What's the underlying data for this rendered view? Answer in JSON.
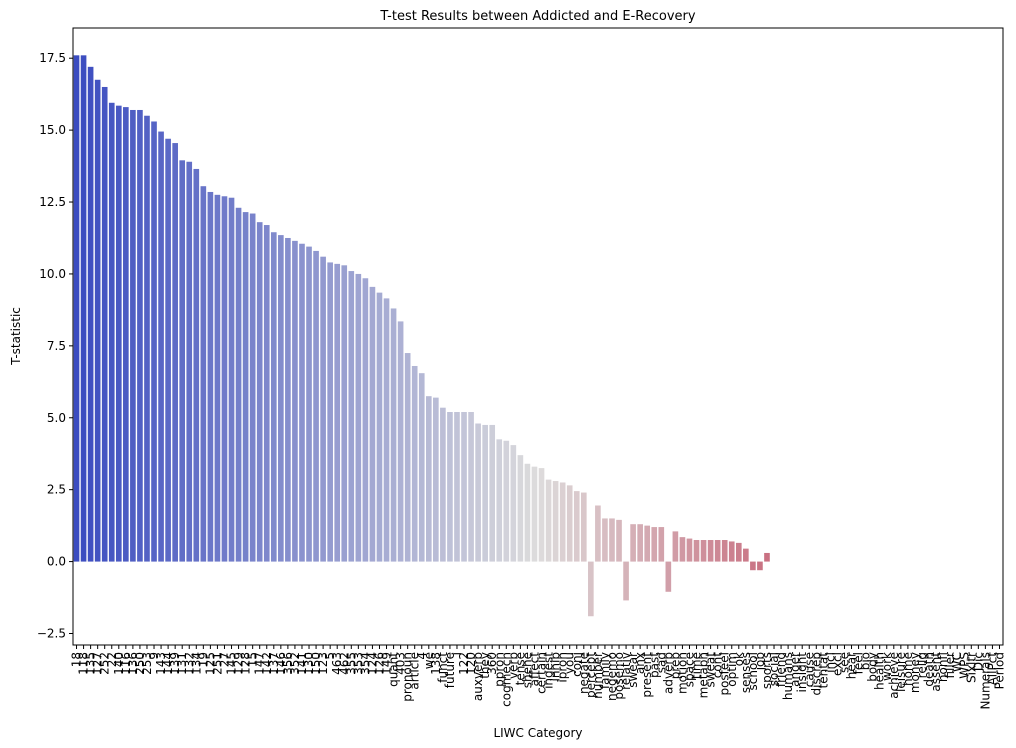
{
  "chart_data": {
    "type": "bar",
    "title": "T-test Results between Addicted and E-Recovery",
    "x_label": "LIWC Category",
    "y_label": "T-statistic",
    "palette": [
      "#3b4cc0",
      "#dddcdc",
      "#b40426"
    ],
    "categories": [
      "18",
      "118",
      "135",
      "127",
      "252",
      "22",
      "140",
      "116",
      "136",
      "250",
      "253",
      "9",
      "143",
      "144",
      "139",
      "131",
      "132",
      "134",
      "19",
      "125",
      "251",
      "27",
      "145",
      "129",
      "128",
      "15",
      "147",
      "142",
      "137",
      "146",
      "356",
      "352",
      "141",
      "130",
      "150",
      "123",
      "5",
      "463",
      "462",
      "355",
      "353",
      "354",
      "124",
      "126",
      "149",
      "quant",
      "403",
      "pronoun",
      "article",
      "4",
      "we",
      "138",
      "funct",
      "future",
      "i",
      "122",
      "120",
      "auxverb",
      "they",
      "360",
      "ppron",
      "cogmech",
      "verb",
      "tense",
      "shehe",
      "affect",
      "certain",
      "ingest",
      "inhib",
      "ipron",
      "you",
      "conj",
      "negate",
      "percept",
      "number",
      "family",
      "negemo",
      "posemo",
      "relativ",
      "swear",
      "anx",
      "present",
      "past",
      "sad",
      "adverb",
      "prep",
      "motion",
      "space",
      "time",
      "metaph",
      "sweat",
      "cont",
      "posfeel",
      "optim",
      "ok",
      "senses",
      "school",
      "job",
      "sports",
      "social",
      "friend",
      "humans",
      "anger",
      "insight",
      "cause",
      "discrep",
      "tentat",
      "incl",
      "excl",
      "see",
      "hear",
      "feel",
      "bio",
      "body",
      "health",
      "work",
      "achieve",
      "leisure",
      "home",
      "money",
      "relig",
      "death",
      "assent",
      "nonfl",
      "filler",
      "WC",
      "WPS",
      "Sixltr",
      "Dic",
      "Numerals",
      "AllPct",
      "Period"
    ],
    "values": [
      17.6,
      17.6,
      17.2,
      16.75,
      16.5,
      15.95,
      15.85,
      15.8,
      15.7,
      15.7,
      15.5,
      15.3,
      14.95,
      14.7,
      14.55,
      13.95,
      13.9,
      13.65,
      13.05,
      12.85,
      12.75,
      12.7,
      12.65,
      12.3,
      12.15,
      12.1,
      11.8,
      11.7,
      11.45,
      11.35,
      11.25,
      11.15,
      11.05,
      10.95,
      10.8,
      10.6,
      10.4,
      10.35,
      10.3,
      10.1,
      10.0,
      9.85,
      9.55,
      9.35,
      9.15,
      8.8,
      8.35,
      7.25,
      6.8,
      6.55,
      5.75,
      5.7,
      5.35,
      5.2,
      5.2,
      5.2,
      5.2,
      4.8,
      4.75,
      4.75,
      4.25,
      4.2,
      4.05,
      3.7,
      3.4,
      3.3,
      3.25,
      2.85,
      2.8,
      2.75,
      2.65,
      2.45,
      2.4,
      -1.9,
      1.95,
      1.5,
      1.5,
      1.45,
      -1.35,
      1.3,
      1.3,
      1.25,
      1.2,
      1.2,
      -1.05,
      1.05,
      0.85,
      0.8,
      0.75,
      0.75,
      0.75,
      0.75,
      0.75,
      0.7,
      0.65,
      0.45,
      -0.3,
      -0.3,
      0.3,
      0,
      0,
      0,
      0,
      0,
      0,
      0,
      0,
      0,
      0,
      0,
      0,
      0,
      0,
      0,
      0,
      0,
      0,
      0,
      0,
      0,
      0,
      0,
      0,
      0,
      0,
      0,
      0,
      0,
      0,
      0,
      0,
      0
    ],
    "ylim": [
      -2.9,
      18.55
    ],
    "yticks": [
      {
        "value": -2.5,
        "label": "−2.5"
      },
      {
        "value": 0,
        "label": "0.0"
      },
      2.5,
      {
        "value": 5,
        "label": "5.0"
      },
      7.5,
      {
        "value": 10,
        "label": "10.0"
      },
      12.5,
      {
        "value": 15,
        "label": "15.0"
      },
      17.5
    ],
    "grid": false
  }
}
